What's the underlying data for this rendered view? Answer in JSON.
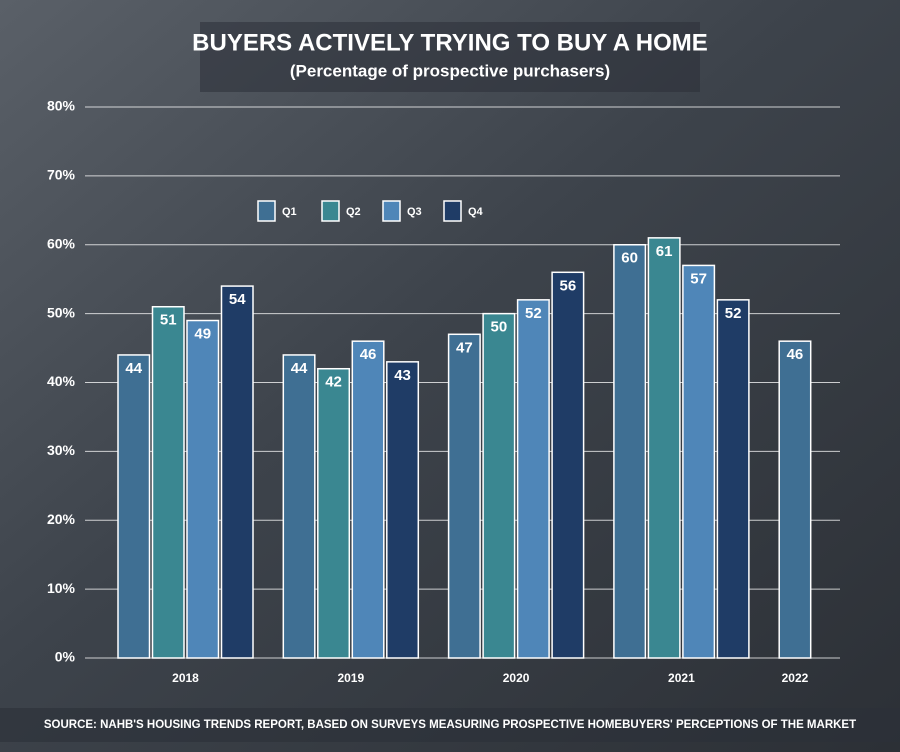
{
  "chart_data": {
    "type": "bar",
    "title": "BUYERS ACTIVELY TRYING TO BUY A HOME",
    "subtitle": "(Percentage of prospective purchasers)",
    "source": "SOURCE: NAHB'S HOUSING TRENDS REPORT, BASED ON SURVEYS MEASURING PROSPECTIVE HOMEBUYERS' PERCEPTIONS OF THE MARKET",
    "categories": [
      "2018",
      "2019",
      "2020",
      "2021",
      "2022"
    ],
    "series": [
      {
        "name": "Q1",
        "color": "#3f6f93",
        "values": [
          44,
          44,
          47,
          60,
          46
        ]
      },
      {
        "name": "Q2",
        "color": "#3a8791",
        "values": [
          51,
          42,
          50,
          61,
          null
        ]
      },
      {
        "name": "Q3",
        "color": "#4f86b8",
        "values": [
          49,
          46,
          52,
          57,
          null
        ]
      },
      {
        "name": "Q4",
        "color": "#1f3c66",
        "values": [
          54,
          43,
          56,
          52,
          null
        ]
      }
    ],
    "ylim": [
      0,
      80
    ],
    "yticks": [
      {
        "value": 0,
        "label": "0%"
      },
      {
        "value": 10,
        "label": "10%"
      },
      {
        "value": 20,
        "label": "20%"
      },
      {
        "value": 30,
        "label": "30%"
      },
      {
        "value": 40,
        "label": "40%"
      },
      {
        "value": 50,
        "label": "50%"
      },
      {
        "value": 60,
        "label": "60%"
      },
      {
        "value": 70,
        "label": "70%"
      },
      {
        "value": 80,
        "label": "80%"
      }
    ],
    "grid": true
  }
}
